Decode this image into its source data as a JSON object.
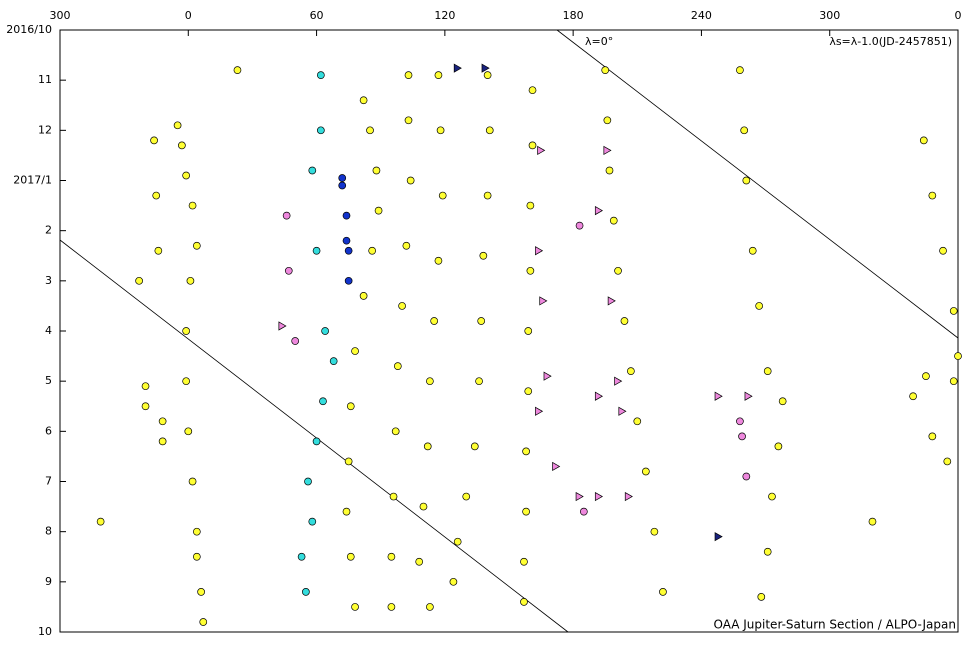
{
  "chart_data": {
    "type": "scatter",
    "annotations": [
      "λ=0°",
      "λs=λ-1.0(JD-2457851)",
      "OAA Jupiter-Saturn Section / ALPO-Japan"
    ],
    "xlim": [
      -60,
      360
    ],
    "xticks": [
      {
        "value": -60,
        "label": "300"
      },
      0,
      60,
      120,
      180,
      240,
      300,
      {
        "value": 360,
        "label": "0"
      }
    ],
    "ylim": [
      0,
      12
    ],
    "y_inverted": true,
    "yticks": [
      {
        "value": 0,
        "label": "2016/10"
      },
      {
        "value": 1,
        "label": "11"
      },
      {
        "value": 2,
        "label": "12"
      },
      {
        "value": 3,
        "label": "2017/1"
      },
      {
        "value": 4,
        "label": "2"
      },
      {
        "value": 5,
        "label": "3"
      },
      {
        "value": 6,
        "label": "4"
      },
      {
        "value": 7,
        "label": "5"
      },
      {
        "value": 8,
        "label": "6"
      },
      {
        "value": 9,
        "label": "7"
      },
      {
        "value": 10,
        "label": "8"
      },
      {
        "value": 11,
        "label": "9"
      },
      {
        "value": 12,
        "label": "10"
      }
    ],
    "series": [
      {
        "color": "#ffff33",
        "marker": "circle",
        "x": [
          -5,
          -3,
          -1,
          2,
          4,
          1,
          -1,
          -1,
          0,
          2,
          4,
          4,
          6,
          7,
          82,
          85,
          88,
          89,
          86,
          82,
          78,
          76,
          75,
          74,
          76,
          78,
          103,
          103,
          104,
          102,
          100,
          98,
          97,
          96,
          95,
          95,
          117,
          118,
          119,
          117,
          115,
          113,
          112,
          110,
          108,
          113,
          140,
          141,
          140,
          138,
          137,
          136,
          134,
          130,
          126,
          124,
          161,
          161,
          160,
          160,
          159,
          159,
          158,
          158,
          157,
          157,
          195,
          196,
          197,
          199,
          201,
          204,
          207,
          210,
          214,
          218,
          222,
          258,
          260,
          261,
          264,
          267,
          271,
          278,
          276,
          273,
          271,
          268,
          344,
          348,
          353,
          358,
          360,
          358,
          345,
          339,
          348,
          355,
          -16,
          -15,
          -14,
          -23,
          -20,
          -20,
          -12,
          -12,
          23,
          -41,
          320
        ],
        "y": [
          1.9,
          2.3,
          2.9,
          3.5,
          4.3,
          5.0,
          6.0,
          7.0,
          8.0,
          9.0,
          10.0,
          10.5,
          11.2,
          11.8,
          1.4,
          2.0,
          2.8,
          3.6,
          4.4,
          5.3,
          6.4,
          7.5,
          8.6,
          9.6,
          10.5,
          11.5,
          0.9,
          1.8,
          3.0,
          4.3,
          5.5,
          6.7,
          8.0,
          9.3,
          10.5,
          11.5,
          0.9,
          2.0,
          3.3,
          4.6,
          5.8,
          7.0,
          8.3,
          9.5,
          10.6,
          11.5,
          0.9,
          2.0,
          3.3,
          4.5,
          5.8,
          7.0,
          8.3,
          9.3,
          10.2,
          11.0,
          1.2,
          2.3,
          3.5,
          4.8,
          6.0,
          7.2,
          8.4,
          9.6,
          10.6,
          11.4,
          0.8,
          1.8,
          2.8,
          3.8,
          4.8,
          5.8,
          6.8,
          7.8,
          8.8,
          10.0,
          11.2,
          0.8,
          2.0,
          3.0,
          4.4,
          5.5,
          6.8,
          7.4,
          8.3,
          9.3,
          10.4,
          11.3,
          2.2,
          3.3,
          4.4,
          5.6,
          6.5,
          7.0,
          6.9,
          7.3,
          8.1,
          8.6,
          2.2,
          3.3,
          4.4,
          5.0,
          7.1,
          7.5,
          7.8,
          8.2,
          0.8,
          9.8,
          9.8
        ]
      },
      {
        "color": "#33dddd",
        "marker": "circle",
        "x": [
          62,
          62,
          58,
          60,
          64,
          68,
          63,
          60,
          56,
          58,
          53,
          55
        ],
        "y": [
          0.9,
          2.0,
          2.8,
          4.4,
          6.0,
          6.6,
          7.4,
          8.2,
          9.0,
          9.8,
          10.5,
          11.2
        ]
      },
      {
        "color": "#1133cc",
        "marker": "circle",
        "x": [
          72,
          72,
          74,
          74,
          75,
          75
        ],
        "y": [
          2.95,
          3.1,
          3.7,
          4.2,
          4.4,
          5.0
        ]
      },
      {
        "color": "#ee88dd",
        "marker": "circle",
        "x": [
          46,
          47,
          50,
          258,
          259,
          261,
          185,
          183
        ],
        "y": [
          3.7,
          4.8,
          6.2,
          7.8,
          8.1,
          8.9,
          9.6,
          3.9
        ]
      },
      {
        "color": "#ee88dd",
        "marker": "triangle",
        "x": [
          44,
          165,
          166,
          168,
          164,
          196,
          192,
          198,
          201,
          192,
          203,
          172,
          183,
          192,
          206,
          248,
          262,
          164
        ],
        "y": [
          5.9,
          2.4,
          5.4,
          6.9,
          7.6,
          2.4,
          3.6,
          5.4,
          7.0,
          7.3,
          7.6,
          8.7,
          9.3,
          9.3,
          9.3,
          7.3,
          7.3,
          4.4
        ]
      },
      {
        "color": "#1a237e",
        "marker": "triangle",
        "x": [
          126,
          139,
          248
        ],
        "y": [
          0.76,
          0.76,
          10.1
        ]
      }
    ]
  }
}
